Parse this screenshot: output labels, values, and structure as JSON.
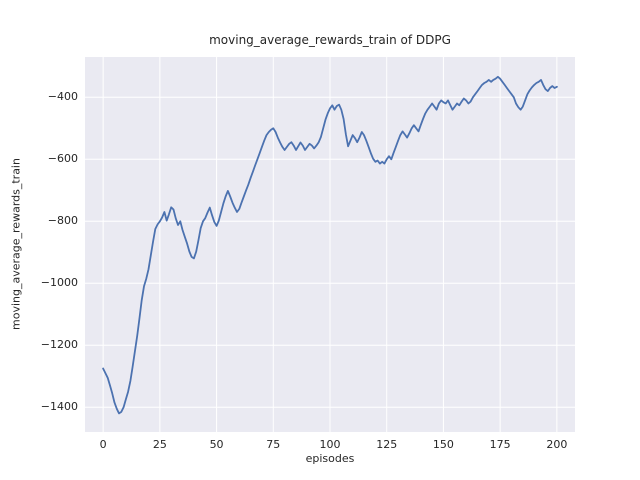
{
  "figure": {
    "background": "#ffffff",
    "plot_background": "#eaeaf2",
    "grid_color": "#ffffff",
    "text_color": "#262626"
  },
  "chart_data": {
    "type": "line",
    "title": "moving_average_rewards_train of DDPG",
    "xlabel": "episodes",
    "ylabel": "moving_average_rewards_train",
    "grid": true,
    "legend": "none",
    "line_color": "#4c72b0",
    "line_width": 1.8,
    "xlim": [
      -8,
      208
    ],
    "ylim": [
      -1480,
      -270
    ],
    "x_ticks": [
      0,
      25,
      50,
      75,
      100,
      125,
      150,
      175,
      200
    ],
    "x_tick_labels": [
      "0",
      "25",
      "50",
      "75",
      "100",
      "125",
      "150",
      "175",
      "200"
    ],
    "y_ticks": [
      -400,
      -600,
      -800,
      -1000,
      -1200,
      -1400
    ],
    "y_tick_labels": [
      "−400",
      "−600",
      "−800",
      "−1000",
      "−1200",
      "−1400"
    ],
    "series": [
      {
        "name": "moving_average_rewards_train",
        "x_start": 0,
        "x_step": 1,
        "values": [
          -1275,
          -1290,
          -1305,
          -1330,
          -1355,
          -1385,
          -1405,
          -1420,
          -1415,
          -1400,
          -1375,
          -1350,
          -1315,
          -1270,
          -1220,
          -1170,
          -1115,
          -1055,
          -1010,
          -985,
          -955,
          -910,
          -865,
          -825,
          -810,
          -800,
          -788,
          -770,
          -798,
          -778,
          -755,
          -762,
          -790,
          -812,
          -800,
          -828,
          -850,
          -872,
          -898,
          -915,
          -920,
          -898,
          -862,
          -822,
          -800,
          -790,
          -772,
          -756,
          -780,
          -802,
          -815,
          -798,
          -770,
          -742,
          -720,
          -702,
          -720,
          -740,
          -756,
          -770,
          -760,
          -740,
          -720,
          -700,
          -682,
          -660,
          -640,
          -620,
          -600,
          -580,
          -560,
          -540,
          -522,
          -512,
          -505,
          -500,
          -512,
          -530,
          -546,
          -560,
          -570,
          -560,
          -550,
          -545,
          -556,
          -570,
          -558,
          -546,
          -556,
          -570,
          -560,
          -550,
          -556,
          -565,
          -556,
          -545,
          -528,
          -500,
          -472,
          -452,
          -436,
          -426,
          -440,
          -428,
          -424,
          -440,
          -470,
          -520,
          -558,
          -540,
          -522,
          -532,
          -545,
          -530,
          -512,
          -522,
          -540,
          -560,
          -580,
          -598,
          -608,
          -604,
          -614,
          -608,
          -614,
          -600,
          -590,
          -600,
          -580,
          -560,
          -540,
          -522,
          -510,
          -520,
          -530,
          -516,
          -500,
          -490,
          -500,
          -510,
          -490,
          -470,
          -452,
          -440,
          -430,
          -420,
          -430,
          -440,
          -420,
          -410,
          -416,
          -420,
          -410,
          -425,
          -440,
          -430,
          -420,
          -426,
          -414,
          -404,
          -410,
          -420,
          -414,
          -400,
          -390,
          -380,
          -370,
          -360,
          -354,
          -350,
          -344,
          -350,
          -344,
          -340,
          -334,
          -340,
          -350,
          -360,
          -370,
          -380,
          -390,
          -400,
          -420,
          -432,
          -440,
          -430,
          -410,
          -390,
          -378,
          -368,
          -360,
          -354,
          -350,
          -344,
          -360,
          -374,
          -380,
          -370,
          -364,
          -370,
          -366
        ]
      }
    ]
  }
}
